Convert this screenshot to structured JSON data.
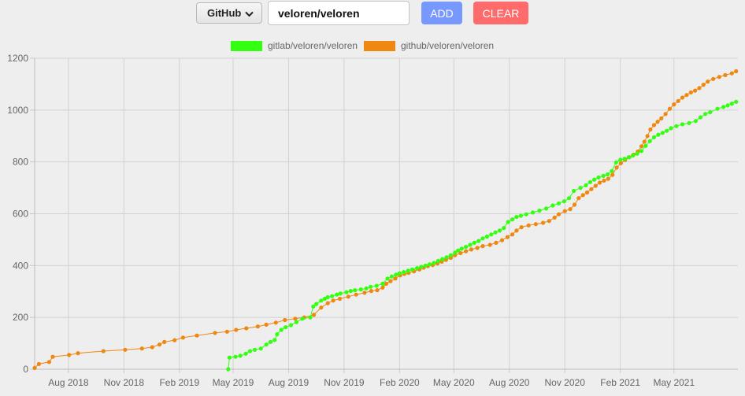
{
  "controls": {
    "source_select": "GitHub",
    "repo_input": "veloren/veloren",
    "add_label": "ADD",
    "clear_label": "CLEAR"
  },
  "chart_data": {
    "type": "line",
    "title": "",
    "xlabel": "",
    "ylabel": "",
    "ylim": [
      0,
      1200
    ],
    "yticks": [
      0,
      200,
      400,
      600,
      800,
      1000,
      1200
    ],
    "xlim": [
      "2018-06-06",
      "2021-08-15"
    ],
    "xticks": [
      {
        "date": "2018-08-01",
        "label": "Aug 2018"
      },
      {
        "date": "2018-11-01",
        "label": "Nov 2018"
      },
      {
        "date": "2019-02-01",
        "label": "Feb 2019"
      },
      {
        "date": "2019-05-01",
        "label": "May 2019"
      },
      {
        "date": "2019-08-01",
        "label": "Aug 2019"
      },
      {
        "date": "2019-11-01",
        "label": "Nov 2019"
      },
      {
        "date": "2020-02-01",
        "label": "Feb 2020"
      },
      {
        "date": "2020-05-01",
        "label": "May 2020"
      },
      {
        "date": "2020-08-01",
        "label": "Aug 2020"
      },
      {
        "date": "2020-11-01",
        "label": "Nov 2020"
      },
      {
        "date": "2021-02-01",
        "label": "Feb 2021"
      },
      {
        "date": "2021-05-01",
        "label": "May 2021"
      }
    ],
    "grid": true,
    "legend_position": "top",
    "series": [
      {
        "name": "gitlab/veloren/veloren",
        "color": "#33ff11",
        "points": [
          [
            "2019-04-23",
            0
          ],
          [
            "2019-04-25",
            45
          ],
          [
            "2019-05-05",
            48
          ],
          [
            "2019-05-13",
            52
          ],
          [
            "2019-05-22",
            60
          ],
          [
            "2019-05-29",
            70
          ],
          [
            "2019-06-06",
            75
          ],
          [
            "2019-06-16",
            80
          ],
          [
            "2019-06-25",
            95
          ],
          [
            "2019-07-02",
            105
          ],
          [
            "2019-07-09",
            113
          ],
          [
            "2019-07-13",
            135
          ],
          [
            "2019-07-20",
            152
          ],
          [
            "2019-07-27",
            162
          ],
          [
            "2019-08-05",
            170
          ],
          [
            "2019-08-14",
            182
          ],
          [
            "2019-08-24",
            195
          ],
          [
            "2019-09-06",
            200
          ],
          [
            "2019-09-11",
            242
          ],
          [
            "2019-09-16",
            252
          ],
          [
            "2019-09-24",
            265
          ],
          [
            "2019-09-30",
            272
          ],
          [
            "2019-10-05",
            278
          ],
          [
            "2019-10-12",
            282
          ],
          [
            "2019-10-20",
            288
          ],
          [
            "2019-10-26",
            292
          ],
          [
            "2019-11-05",
            297
          ],
          [
            "2019-11-12",
            302
          ],
          [
            "2019-11-19",
            305
          ],
          [
            "2019-11-29",
            308
          ],
          [
            "2019-12-08",
            312
          ],
          [
            "2019-12-15",
            318
          ],
          [
            "2019-12-25",
            322
          ],
          [
            "2020-01-04",
            330
          ],
          [
            "2020-01-12",
            350
          ],
          [
            "2020-01-19",
            358
          ],
          [
            "2020-01-26",
            365
          ],
          [
            "2020-02-01",
            370
          ],
          [
            "2020-02-08",
            375
          ],
          [
            "2020-02-15",
            380
          ],
          [
            "2020-02-22",
            385
          ],
          [
            "2020-03-01",
            390
          ],
          [
            "2020-03-08",
            395
          ],
          [
            "2020-03-15",
            400
          ],
          [
            "2020-03-22",
            405
          ],
          [
            "2020-03-29",
            410
          ],
          [
            "2020-04-05",
            418
          ],
          [
            "2020-04-12",
            425
          ],
          [
            "2020-04-19",
            432
          ],
          [
            "2020-04-26",
            440
          ],
          [
            "2020-05-03",
            450
          ],
          [
            "2020-05-08",
            458
          ],
          [
            "2020-05-14",
            465
          ],
          [
            "2020-05-21",
            472
          ],
          [
            "2020-05-28",
            480
          ],
          [
            "2020-06-04",
            488
          ],
          [
            "2020-06-11",
            495
          ],
          [
            "2020-06-18",
            505
          ],
          [
            "2020-06-25",
            512
          ],
          [
            "2020-07-02",
            520
          ],
          [
            "2020-07-09",
            528
          ],
          [
            "2020-07-16",
            535
          ],
          [
            "2020-07-23",
            545
          ],
          [
            "2020-07-30",
            568
          ],
          [
            "2020-08-06",
            578
          ],
          [
            "2020-08-13",
            588
          ],
          [
            "2020-08-20",
            592
          ],
          [
            "2020-08-29",
            598
          ],
          [
            "2020-09-09",
            605
          ],
          [
            "2020-09-20",
            612
          ],
          [
            "2020-10-01",
            620
          ],
          [
            "2020-10-12",
            632
          ],
          [
            "2020-10-22",
            640
          ],
          [
            "2020-10-31",
            648
          ],
          [
            "2020-11-08",
            660
          ],
          [
            "2020-11-16",
            688
          ],
          [
            "2020-11-27",
            700
          ],
          [
            "2020-12-06",
            710
          ],
          [
            "2020-12-13",
            722
          ],
          [
            "2020-12-20",
            732
          ],
          [
            "2020-12-27",
            740
          ],
          [
            "2021-01-04",
            746
          ],
          [
            "2021-01-11",
            752
          ],
          [
            "2021-01-18",
            765
          ],
          [
            "2021-01-25",
            798
          ],
          [
            "2021-02-01",
            808
          ],
          [
            "2021-02-08",
            812
          ],
          [
            "2021-02-15",
            818
          ],
          [
            "2021-02-22",
            825
          ],
          [
            "2021-03-01",
            832
          ],
          [
            "2021-03-08",
            842
          ],
          [
            "2021-03-15",
            862
          ],
          [
            "2021-03-22",
            880
          ],
          [
            "2021-03-29",
            895
          ],
          [
            "2021-04-05",
            905
          ],
          [
            "2021-04-12",
            912
          ],
          [
            "2021-04-19",
            920
          ],
          [
            "2021-04-26",
            930
          ],
          [
            "2021-05-05",
            938
          ],
          [
            "2021-05-15",
            945
          ],
          [
            "2021-05-26",
            950
          ],
          [
            "2021-06-06",
            958
          ],
          [
            "2021-06-14",
            972
          ],
          [
            "2021-06-22",
            985
          ],
          [
            "2021-06-30",
            992
          ],
          [
            "2021-07-12",
            1005
          ],
          [
            "2021-07-22",
            1012
          ],
          [
            "2021-07-29",
            1018
          ],
          [
            "2021-08-05",
            1025
          ],
          [
            "2021-08-12",
            1032
          ]
        ]
      },
      {
        "name": "github/veloren/veloren",
        "color": "#ee8811",
        "points": [
          [
            "2018-06-06",
            5
          ],
          [
            "2018-06-13",
            20
          ],
          [
            "2018-06-30",
            28
          ],
          [
            "2018-07-06",
            48
          ],
          [
            "2018-08-02",
            55
          ],
          [
            "2018-08-17",
            62
          ],
          [
            "2018-09-28",
            70
          ],
          [
            "2018-11-03",
            75
          ],
          [
            "2018-12-01",
            80
          ],
          [
            "2018-12-18",
            85
          ],
          [
            "2018-12-30",
            95
          ],
          [
            "2019-01-07",
            105
          ],
          [
            "2019-01-24",
            112
          ],
          [
            "2019-02-07",
            122
          ],
          [
            "2019-03-02",
            130
          ],
          [
            "2019-04-01",
            140
          ],
          [
            "2019-04-21",
            145
          ],
          [
            "2019-05-06",
            152
          ],
          [
            "2019-05-23",
            158
          ],
          [
            "2019-06-11",
            165
          ],
          [
            "2019-06-25",
            172
          ],
          [
            "2019-07-11",
            180
          ],
          [
            "2019-07-26",
            190
          ],
          [
            "2019-08-12",
            195
          ],
          [
            "2019-08-27",
            200
          ],
          [
            "2019-09-12",
            210
          ],
          [
            "2019-09-24",
            238
          ],
          [
            "2019-10-05",
            255
          ],
          [
            "2019-10-14",
            265
          ],
          [
            "2019-10-25",
            272
          ],
          [
            "2019-11-08",
            280
          ],
          [
            "2019-11-21",
            288
          ],
          [
            "2019-12-05",
            295
          ],
          [
            "2019-12-16",
            302
          ],
          [
            "2019-12-26",
            305
          ],
          [
            "2020-01-04",
            315
          ],
          [
            "2020-01-10",
            330
          ],
          [
            "2020-01-17",
            340
          ],
          [
            "2020-01-25",
            350
          ],
          [
            "2020-02-02",
            362
          ],
          [
            "2020-02-09",
            368
          ],
          [
            "2020-02-16",
            372
          ],
          [
            "2020-02-25",
            378
          ],
          [
            "2020-03-05",
            385
          ],
          [
            "2020-03-12",
            392
          ],
          [
            "2020-03-19",
            398
          ],
          [
            "2020-03-27",
            402
          ],
          [
            "2020-04-04",
            408
          ],
          [
            "2020-04-11",
            415
          ],
          [
            "2020-04-18",
            422
          ],
          [
            "2020-04-26",
            430
          ],
          [
            "2020-05-03",
            440
          ],
          [
            "2020-05-12",
            448
          ],
          [
            "2020-05-21",
            455
          ],
          [
            "2020-05-30",
            462
          ],
          [
            "2020-06-09",
            468
          ],
          [
            "2020-06-18",
            475
          ],
          [
            "2020-06-30",
            480
          ],
          [
            "2020-07-10",
            488
          ],
          [
            "2020-07-20",
            498
          ],
          [
            "2020-07-29",
            510
          ],
          [
            "2020-08-06",
            520
          ],
          [
            "2020-08-13",
            535
          ],
          [
            "2020-08-21",
            548
          ],
          [
            "2020-09-02",
            555
          ],
          [
            "2020-09-14",
            560
          ],
          [
            "2020-09-26",
            565
          ],
          [
            "2020-10-06",
            572
          ],
          [
            "2020-10-15",
            585
          ],
          [
            "2020-10-22",
            598
          ],
          [
            "2020-11-01",
            610
          ],
          [
            "2020-11-10",
            618
          ],
          [
            "2020-11-17",
            635
          ],
          [
            "2020-11-24",
            660
          ],
          [
            "2020-12-01",
            672
          ],
          [
            "2020-12-08",
            682
          ],
          [
            "2020-12-15",
            695
          ],
          [
            "2020-12-22",
            708
          ],
          [
            "2020-12-29",
            720
          ],
          [
            "2021-01-05",
            728
          ],
          [
            "2021-01-12",
            735
          ],
          [
            "2021-01-19",
            750
          ],
          [
            "2021-01-26",
            778
          ],
          [
            "2021-02-02",
            795
          ],
          [
            "2021-02-09",
            808
          ],
          [
            "2021-02-16",
            818
          ],
          [
            "2021-02-23",
            828
          ],
          [
            "2021-03-02",
            840
          ],
          [
            "2021-03-08",
            860
          ],
          [
            "2021-03-13",
            878
          ],
          [
            "2021-03-18",
            900
          ],
          [
            "2021-03-23",
            925
          ],
          [
            "2021-03-29",
            942
          ],
          [
            "2021-04-04",
            955
          ],
          [
            "2021-04-10",
            968
          ],
          [
            "2021-04-17",
            985
          ],
          [
            "2021-04-24",
            1005
          ],
          [
            "2021-05-01",
            1022
          ],
          [
            "2021-05-08",
            1035
          ],
          [
            "2021-05-15",
            1048
          ],
          [
            "2021-05-22",
            1058
          ],
          [
            "2021-05-29",
            1068
          ],
          [
            "2021-06-05",
            1075
          ],
          [
            "2021-06-12",
            1085
          ],
          [
            "2021-06-19",
            1098
          ],
          [
            "2021-06-26",
            1110
          ],
          [
            "2021-07-05",
            1120
          ],
          [
            "2021-07-15",
            1128
          ],
          [
            "2021-07-25",
            1135
          ],
          [
            "2021-08-05",
            1142
          ],
          [
            "2021-08-12",
            1150
          ]
        ]
      }
    ]
  }
}
